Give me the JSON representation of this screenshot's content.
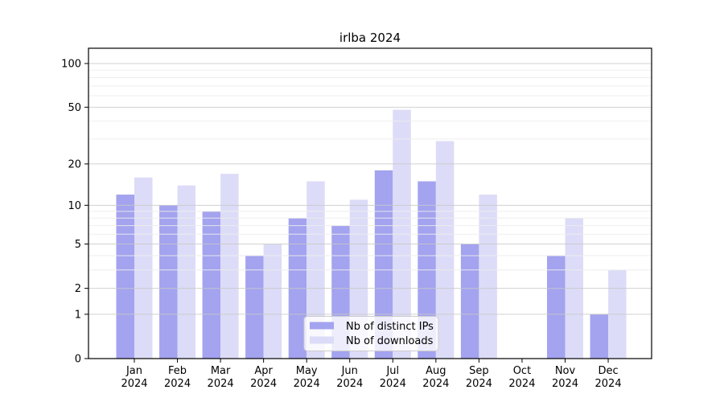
{
  "chart_data": {
    "type": "bar",
    "title": "irlba 2024",
    "categories": [
      "Jan 2024",
      "Feb 2024",
      "Mar 2024",
      "Apr 2024",
      "May 2024",
      "Jun 2024",
      "Jul 2024",
      "Aug 2024",
      "Sep 2024",
      "Oct 2024",
      "Nov 2024",
      "Dec 2024"
    ],
    "months": [
      "Jan",
      "Feb",
      "Mar",
      "Apr",
      "May",
      "Jun",
      "Jul",
      "Aug",
      "Sep",
      "Oct",
      "Nov",
      "Dec"
    ],
    "year_label": "2024",
    "series": [
      {
        "name": "Nb of distinct IPs",
        "color": "#a3a3ef",
        "values": [
          12,
          10,
          9,
          4,
          8,
          7,
          18,
          15,
          5,
          0,
          4,
          1
        ]
      },
      {
        "name": "Nb of downloads",
        "color": "#dcdcf8",
        "values": [
          16,
          14,
          17,
          5,
          15,
          11,
          48,
          29,
          12,
          0,
          8,
          3
        ]
      }
    ],
    "yscale": "log1p",
    "ylim": [
      0,
      128
    ],
    "yticks": [
      0,
      1,
      2,
      5,
      10,
      20,
      50,
      100
    ],
    "minor_yticks": [
      3,
      4,
      6,
      7,
      8,
      9,
      30,
      40,
      60,
      70,
      80,
      90
    ],
    "grid": "on",
    "legend_position": "bottom-center",
    "colors": {
      "spine": "#000000",
      "major_grid": "#c9c9c9",
      "minor_grid": "#ededed",
      "background": "#ffffff"
    }
  }
}
